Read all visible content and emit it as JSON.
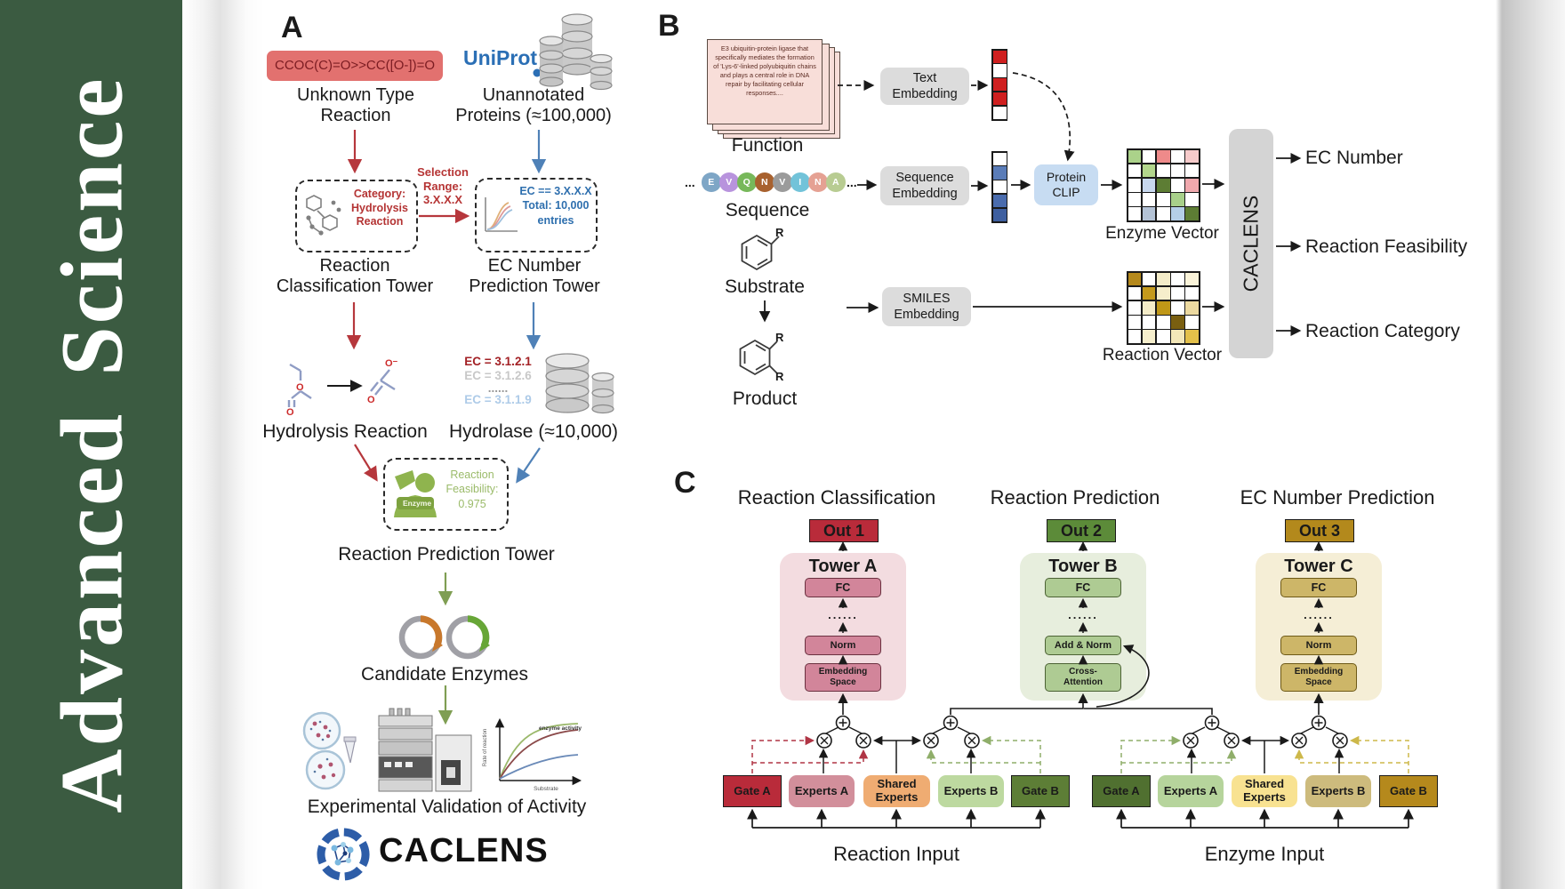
{
  "journal": {
    "title": "Advanced Science"
  },
  "panelA": {
    "label": "A",
    "smiles": "CCOC(C)=O>>CC([O-])=O",
    "unknown": [
      "Unknown Type",
      "Reaction"
    ],
    "uniprot": "UniProt",
    "unannotated": [
      "Unannotated",
      "Proteins (≈100,000)"
    ],
    "selection": [
      "Selection",
      "Range:",
      "3.X.X.X"
    ],
    "category": [
      "Category:",
      "Hydrolysis",
      "Reaction"
    ],
    "ec_box": [
      "EC == 3.X.X.X",
      "Total: 10,000",
      "entries"
    ],
    "tower1": [
      "Reaction",
      "Classification Tower"
    ],
    "tower2": [
      "EC Number",
      "Prediction Tower"
    ],
    "atom_o": "O",
    "atom_o_minus": "O⁻",
    "hydrolysis": "Hydrolysis Reaction",
    "ec_list": [
      {
        "text": "EC = 3.1.2.1",
        "color": "#a32125"
      },
      {
        "text": "EC = 3.1.2.6",
        "color": "#c8c8c8"
      },
      {
        "text": "......",
        "color": "#9a9a9a"
      },
      {
        "text": "EC = 3.1.1.9",
        "color": "#aecbe8"
      }
    ],
    "hydrolase": "Hydrolase (≈10,000)",
    "enzyme": "Enzyme",
    "feasibility": [
      "Reaction",
      "Feasibility:",
      "0.975"
    ],
    "tower3": "Reaction Prediction Tower",
    "candidates": "Candidate Enzymes",
    "plot": {
      "annotation": "enzyme activity",
      "ylabel": "Rate of reaction",
      "xlabel": "Substrate"
    },
    "validation": "Experimental Validation of Activity",
    "brand": "CACLENS"
  },
  "panelB": {
    "label": "B",
    "function_card": "E3 ubiquitin-protein ligase that specifically mediates the formation of 'Lys-6'-linked polyubiquitin chains and plays a central role in DNA repair by facilitating cellular responses....",
    "function": "Function",
    "ellipsis": "...",
    "residues": [
      {
        "letter": "E",
        "color": "#7ea6c6"
      },
      {
        "letter": "V",
        "color": "#b893dd"
      },
      {
        "letter": "Q",
        "color": "#77b85a"
      },
      {
        "letter": "N",
        "color": "#a8612e"
      },
      {
        "letter": "V",
        "color": "#9b9b9b"
      },
      {
        "letter": "I",
        "color": "#72c3d9"
      },
      {
        "letter": "N",
        "color": "#e5a193"
      },
      {
        "letter": "A",
        "color": "#b8cc92"
      }
    ],
    "sequence": "Sequence",
    "substrate": "Substrate",
    "product": "Product",
    "r": "R",
    "text_embedding": "Text Embedding",
    "sequence_embedding": "Sequence Embedding",
    "smiles_embedding": "SMILES Embedding",
    "protein_clip": "Protein CLIP",
    "text_vector": [
      "#cf1f1f",
      "#ffffff",
      "#cf1f1f",
      "#cf1f1f",
      "#ffffff"
    ],
    "seq_vector": [
      "#ffffff",
      "#5a7cb8",
      "#ffffff",
      "#4a6cae",
      "#3e5fa0"
    ],
    "enzyme_grid": [
      [
        "#abd28a",
        "#ffffff",
        "#ee8a8a",
        "#ffffff",
        "#f6caca"
      ],
      [
        "#ffffff",
        "#b2d68c",
        "#ffffff",
        "#ffffff",
        "#ffffff"
      ],
      [
        "#ffffff",
        "#c8d8ee",
        "#5d7d34",
        "#ffffff",
        "#f0a8ad"
      ],
      [
        "#ffffff",
        "#ffffff",
        "#ffffff",
        "#a8d08a",
        "#ffffff"
      ],
      [
        "#ffffff",
        "#b4c3d6",
        "#ffffff",
        "#b5cfe8",
        "#5d7d34"
      ]
    ],
    "reaction_grid": [
      [
        "#b5891c",
        "#ffffff",
        "#f4ecc8",
        "#ffffff",
        "#faf3d9"
      ],
      [
        "#ffffff",
        "#c49a1d",
        "#f6eecb",
        "#ffffff",
        "#ffffff"
      ],
      [
        "#ffffff",
        "#f4ecc8",
        "#bf9717",
        "#ffffff",
        "#ecd9a0"
      ],
      [
        "#ffffff",
        "#ffffff",
        "#ffffff",
        "#7a5f10",
        "#ffffff"
      ],
      [
        "#ffffff",
        "#f6efcd",
        "#ffffff",
        "#f3e7b8",
        "#e3c04a"
      ]
    ],
    "enzyme_vector": "Enzyme Vector",
    "reaction_vector": "Reaction Vector",
    "caclens": "CACLENS",
    "outputs": [
      "EC Number",
      "Reaction Feasibility",
      "Reaction Category"
    ]
  },
  "panelC": {
    "label": "C",
    "headings": [
      "Reaction Classification",
      "Reaction Prediction",
      "EC Number Prediction"
    ],
    "towers": [
      {
        "out": "Out 1",
        "name": "Tower A",
        "fc": "FC",
        "dots": "......",
        "mid": "Norm",
        "base1": "Embedding",
        "base2": "Space"
      },
      {
        "out": "Out 2",
        "name": "Tower B",
        "fc": "FC",
        "dots": "......",
        "mid": "Add & Norm",
        "base1": "Cross-",
        "base2": "Attention"
      },
      {
        "out": "Out 3",
        "name": "Tower C",
        "fc": "FC",
        "dots": "......",
        "mid": "Norm",
        "base1": "Embedding",
        "base2": "Space"
      }
    ],
    "groups": [
      {
        "label": "Reaction Input",
        "gate_a": "Gate A",
        "experts_a": "Experts A",
        "shared": "Shared Experts",
        "experts_b": "Experts B",
        "gate_b": "Gate B"
      },
      {
        "label": "Enzyme Input",
        "gate_a": "Gate A",
        "experts_a": "Experts A",
        "shared": "Shared Experts",
        "experts_b": "Experts B",
        "gate_b": "Gate B"
      }
    ]
  }
}
